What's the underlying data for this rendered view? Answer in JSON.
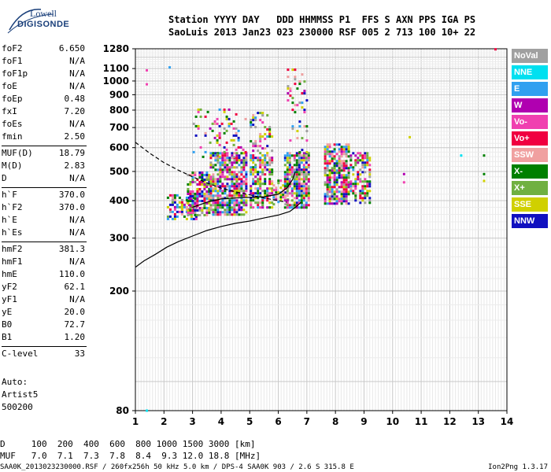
{
  "logo": {
    "line1": "Lowell",
    "line2": "DIGISONDE"
  },
  "header": {
    "line1": "Station YYYY DAY   DDD HHMMSS P1  FFS S AXN PPS IGA PS",
    "line2": "SaoLuis 2013 Jan23 023 230000 RSF 005 2 713 100 10+ 22"
  },
  "params": [
    {
      "label": "foF2",
      "value": "6.650"
    },
    {
      "label": "foF1",
      "value": "N/A"
    },
    {
      "label": "foF1p",
      "value": "N/A"
    },
    {
      "label": "foE",
      "value": "N/A"
    },
    {
      "label": "foEp",
      "value": "0.48"
    },
    {
      "label": "fxI",
      "value": "7.20"
    },
    {
      "label": "foEs",
      "value": "N/A"
    },
    {
      "label": "fmin",
      "value": "2.50"
    },
    {
      "label": "MUF(D)",
      "value": "18.79"
    },
    {
      "label": "M(D)",
      "value": "2.83"
    },
    {
      "label": "D",
      "value": "N/A"
    },
    {
      "label": "h`F",
      "value": "370.0"
    },
    {
      "label": "h`F2",
      "value": "370.0"
    },
    {
      "label": "h`E",
      "value": "N/A"
    },
    {
      "label": "h`Es",
      "value": "N/A"
    },
    {
      "label": "hmF2",
      "value": "381.3"
    },
    {
      "label": "hmF1",
      "value": "N/A"
    },
    {
      "label": "hmE",
      "value": "110.0"
    },
    {
      "label": "yF2",
      "value": "62.1"
    },
    {
      "label": "yF1",
      "value": "N/A"
    },
    {
      "label": "yE",
      "value": "20.0"
    },
    {
      "label": "B0",
      "value": "72.7"
    },
    {
      "label": "B1",
      "value": "1.20"
    },
    {
      "label": "C-level",
      "value": "33"
    }
  ],
  "auto": {
    "line1": "Auto:",
    "line2": "Artist5",
    "line3": "500200"
  },
  "legend": [
    {
      "label": "NoVal",
      "color": "#a0a0a0"
    },
    {
      "label": "NNE",
      "color": "#00e0f0"
    },
    {
      "label": "E",
      "color": "#30a0f0"
    },
    {
      "label": "W",
      "color": "#b000b0"
    },
    {
      "label": "Vo-",
      "color": "#f040b0"
    },
    {
      "label": "Vo+",
      "color": "#f00040"
    },
    {
      "label": "SSW",
      "color": "#f0a0a0"
    },
    {
      "label": "X-",
      "color": "#008000"
    },
    {
      "label": "X+",
      "color": "#70b040"
    },
    {
      "label": "SSE",
      "color": "#d0d000"
    },
    {
      "label": "NNW",
      "color": "#1010c0"
    }
  ],
  "chart_data": {
    "type": "scatter",
    "title": "",
    "xlabel": "",
    "ylabel": "",
    "xlim": [
      1,
      14
    ],
    "x_ticks": [
      1,
      2,
      3,
      4,
      5,
      6,
      7,
      8,
      9,
      10,
      11,
      12,
      13,
      14
    ],
    "y_scale": "log",
    "ylim": [
      80,
      1280
    ],
    "y_ticks": [
      80,
      200,
      300,
      400,
      500,
      600,
      700,
      800,
      900,
      1000,
      1100,
      1280
    ],
    "grid": true,
    "clusters": [
      {
        "x": [
          2.1,
          3.1
        ],
        "y": [
          350,
          420
        ],
        "density": 0.55
      },
      {
        "x": [
          2.8,
          3.6
        ],
        "y": [
          360,
          500
        ],
        "density": 0.7
      },
      {
        "x": [
          3.6,
          4.9
        ],
        "y": [
          360,
          580
        ],
        "density": 0.75
      },
      {
        "x": [
          3.0,
          4.9
        ],
        "y": [
          560,
          810
        ],
        "density": 0.15
      },
      {
        "x": [
          5.0,
          5.8
        ],
        "y": [
          380,
          560
        ],
        "density": 0.6
      },
      {
        "x": [
          5.0,
          5.8
        ],
        "y": [
          560,
          790
        ],
        "density": 0.3
      },
      {
        "x": [
          5.8,
          6.3
        ],
        "y": [
          390,
          470
        ],
        "density": 0.45
      },
      {
        "x": [
          6.2,
          7.1
        ],
        "y": [
          380,
          580
        ],
        "density": 0.8
      },
      {
        "x": [
          6.3,
          7.0
        ],
        "y": [
          580,
          1100
        ],
        "density": 0.15
      },
      {
        "x": [
          7.6,
          8.5
        ],
        "y": [
          390,
          620
        ],
        "density": 0.75
      },
      {
        "x": [
          8.5,
          9.2
        ],
        "y": [
          390,
          580
        ],
        "density": 0.55
      }
    ],
    "isolated_points": [
      {
        "x": 1.4,
        "y": 1085,
        "series": "Vo-"
      },
      {
        "x": 1.4,
        "y": 975,
        "series": "Vo-"
      },
      {
        "x": 2.2,
        "y": 1110,
        "series": "E"
      },
      {
        "x": 10.4,
        "y": 490,
        "series": "W"
      },
      {
        "x": 10.4,
        "y": 460,
        "series": "Vo-"
      },
      {
        "x": 10.6,
        "y": 650,
        "series": "SSE"
      },
      {
        "x": 12.4,
        "y": 565,
        "series": "NNE"
      },
      {
        "x": 13.2,
        "y": 565,
        "series": "X-"
      },
      {
        "x": 13.2,
        "y": 490,
        "series": "X-"
      },
      {
        "x": 13.2,
        "y": 465,
        "series": "SSE"
      },
      {
        "x": 13.6,
        "y": 1275,
        "series": "Vo+"
      },
      {
        "x": 1.4,
        "y": 80,
        "series": "NNE"
      }
    ],
    "trace_lines": [
      {
        "style": "solid",
        "x": [
          1.0,
          1.3,
          1.7,
          2.1,
          2.5,
          3.0,
          3.5,
          4.0,
          4.5,
          5.0,
          5.5,
          6.0,
          6.4,
          6.6,
          6.8
        ],
        "y": [
          240,
          252,
          265,
          280,
          292,
          305,
          318,
          328,
          336,
          342,
          350,
          358,
          368,
          380,
          395
        ]
      },
      {
        "style": "dashed",
        "x": [
          1.0,
          1.5,
          2.0,
          2.5,
          3.0,
          3.5,
          4.0,
          4.5,
          5.0,
          5.5,
          6.0,
          6.3
        ],
        "y": [
          625,
          575,
          535,
          505,
          480,
          458,
          440,
          428,
          418,
          408,
          400,
          395
        ]
      },
      {
        "style": "solid",
        "x": [
          3.0,
          3.5,
          4.0,
          4.5,
          5.0,
          5.5,
          6.0,
          6.3,
          6.5,
          6.6
        ],
        "y": [
          380,
          395,
          405,
          408,
          410,
          412,
          420,
          440,
          470,
          500
        ]
      }
    ]
  },
  "footer": {
    "d_line": "D     100  200  400  600  800 1000 1500 3000 [km]",
    "muf_line": "MUF   7.0  7.1  7.3  7.8  8.4  9.3 12.0 18.8 [MHz]",
    "file_line": "SAA0K_2013023230000.RSF / 260fx256h 50 kHz 5.0 km / DPS-4 SAA0K 903 / 2.6 S 315.8 E",
    "version": "Ion2Png 1.3.17"
  }
}
